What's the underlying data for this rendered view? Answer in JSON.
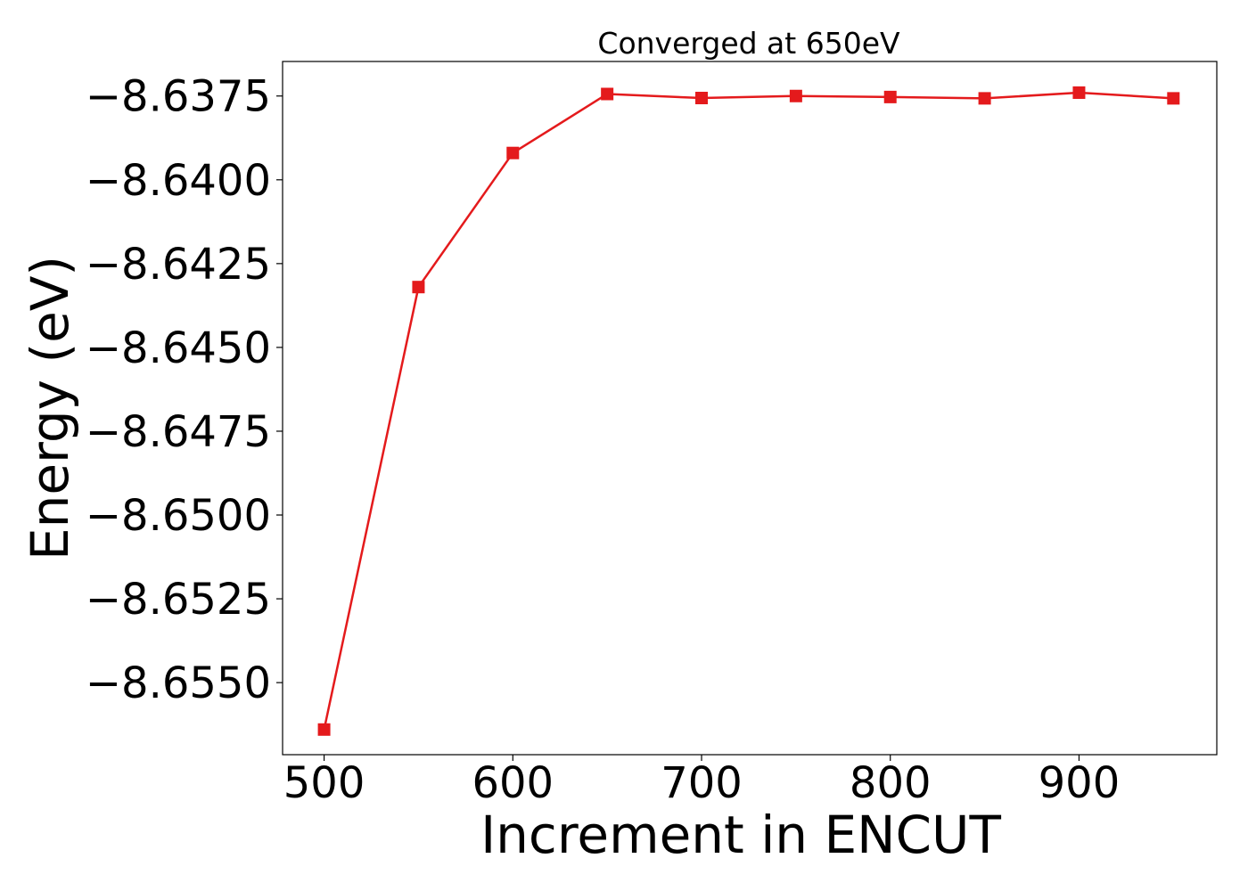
{
  "chart_data": {
    "type": "line",
    "title": "Converged at 650eV",
    "xlabel": "Increment in ENCUT",
    "ylabel": "Energy (eV)",
    "x": [
      500,
      550,
      600,
      650,
      700,
      750,
      800,
      850,
      900,
      950
    ],
    "series": [
      {
        "values": [
          -8.6564,
          -8.6432,
          -8.6392,
          -8.63744,
          -8.63756,
          -8.6375,
          -8.63753,
          -8.63757,
          -8.6374,
          -8.63757
        ],
        "color": "#e41a1c",
        "marker": "square"
      }
    ],
    "xlim": [
      478,
      973
    ],
    "ylim": [
      -8.65715,
      -8.63647
    ],
    "xticks": [
      500,
      600,
      700,
      800,
      900
    ],
    "xtick_labels": [
      "500",
      "600",
      "700",
      "800",
      "900"
    ],
    "yticks": [
      -8.6375,
      -8.64,
      -8.6425,
      -8.645,
      -8.6475,
      -8.65,
      -8.6525,
      -8.655
    ],
    "ytick_labels": [
      "−8.6375",
      "−8.6400",
      "−8.6425",
      "−8.6450",
      "−8.6475",
      "−8.6500",
      "−8.6525",
      "−8.6550"
    ],
    "grid": false,
    "legend": "none"
  }
}
